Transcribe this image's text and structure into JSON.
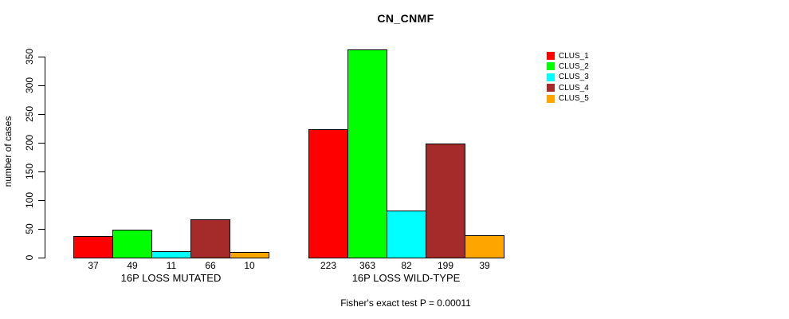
{
  "chart_data": {
    "type": "bar",
    "title": "CN_CNMF",
    "ylabel": "number of cases",
    "xlabel": "",
    "ylim": [
      0,
      350
    ],
    "yticks": [
      0,
      50,
      100,
      150,
      200,
      250,
      300,
      350
    ],
    "grid": false,
    "legend_position": "right",
    "series_names": [
      "CLUS_1",
      "CLUS_2",
      "CLUS_3",
      "CLUS_4",
      "CLUS_5"
    ],
    "colors": [
      "#ff0000",
      "#00ff00",
      "#00ffff",
      "#a52a2a",
      "#ffa500"
    ],
    "groups": [
      {
        "label": "16P LOSS MUTATED",
        "values": [
          37,
          49,
          11,
          66,
          10
        ]
      },
      {
        "label": "16P LOSS WILD-TYPE",
        "values": [
          223,
          363,
          82,
          199,
          39
        ]
      }
    ],
    "footnote": "Fisher's exact test P = 0.00011"
  }
}
